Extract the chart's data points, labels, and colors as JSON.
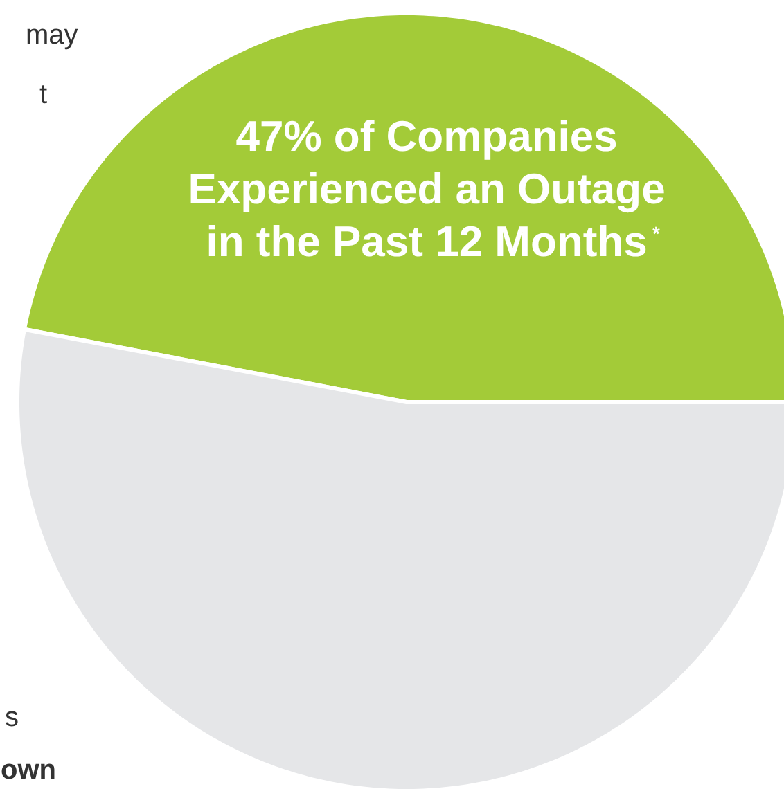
{
  "chart_data": {
    "type": "pie",
    "categories": [
      "47% of Companies\nExperienced an Outage\nin the Past 12 Months$^{*}$",
      null
    ],
    "values": [
      47,
      53
    ],
    "colors": [
      "#a3cb38",
      "#e5e6e8"
    ],
    "annotations": [
      "may",
      "t",
      "s",
      "own"
    ]
  }
}
